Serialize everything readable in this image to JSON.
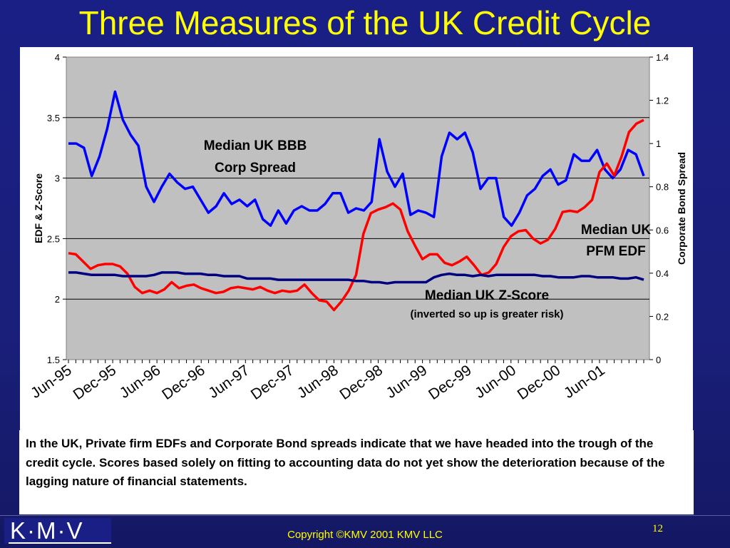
{
  "slide": {
    "title": "Three Measures of the UK Credit Cycle",
    "body_text": "In the UK, Private firm EDFs and Corporate Bond spreads indicate that we have headed into the trough of the credit cycle.  Scores based solely on fitting to accounting data do not yet show the deterioration because of the lagging nature of financial statements.",
    "logo": "K·M·V",
    "copyright": "Copyright ©KMV 2001 KMV LLC",
    "page_number": "12"
  },
  "colors": {
    "background": "#1a1f86",
    "title": "#ffff00",
    "plot_area": "#c0c0c0",
    "spread_series": "#0000ff",
    "edf_series": "#ff0000",
    "zscore_series": "#000080"
  },
  "chart_data": {
    "type": "line",
    "title": "",
    "ylabel": "EDF & Z-Score",
    "y2label": "Corporate Bond Spread",
    "ylim": [
      1.5,
      4
    ],
    "y2lim": [
      0,
      1.4
    ],
    "yticks": [
      "1.5",
      "2",
      "2.5",
      "3",
      "3.5",
      "4"
    ],
    "y2ticks": [
      "0",
      "0.2",
      "0.4",
      "0.6",
      "0.8",
      "1",
      "1.2",
      "1.4"
    ],
    "xlabels": [
      "Jun-95",
      "Dec-95",
      "Jun-96",
      "Dec-96",
      "Jun-97",
      "Dec-97",
      "Jun-98",
      "Dec-98",
      "Jun-99",
      "Dec-99",
      "Jun-00",
      "Dec-00",
      "Jun-01"
    ],
    "grid": true,
    "annotations": [
      {
        "text": "Median UK  BBB",
        "series": "spread"
      },
      {
        "text": "Corp Spread",
        "series": "spread"
      },
      {
        "text": "Median UK",
        "series": "edf"
      },
      {
        "text": "PFM EDF",
        "series": "edf"
      },
      {
        "text": "Median UK Z-Score",
        "series": "zscore"
      },
      {
        "text": "(inverted so up is greater risk)",
        "series": "zscore"
      }
    ],
    "series": [
      {
        "key": "spread",
        "axis": "right",
        "values": [
          1.0,
          1.0,
          0.98,
          0.85,
          0.94,
          1.07,
          1.24,
          1.11,
          1.04,
          0.99,
          0.8,
          0.73,
          0.8,
          0.86,
          0.82,
          0.79,
          0.8,
          0.74,
          0.68,
          0.71,
          0.77,
          0.72,
          0.74,
          0.71,
          0.74,
          0.65,
          0.62,
          0.69,
          0.63,
          0.69,
          0.71,
          0.69,
          0.69,
          0.72,
          0.77,
          0.77,
          0.68,
          0.7,
          0.69,
          0.73,
          1.02,
          0.87,
          0.8,
          0.86,
          0.67,
          0.69,
          0.68,
          0.66,
          0.94,
          1.05,
          1.02,
          1.05,
          0.96,
          0.79,
          0.84,
          0.84,
          0.66,
          0.62,
          0.68,
          0.76,
          0.79,
          0.85,
          0.88,
          0.81,
          0.83,
          0.95,
          0.92,
          0.92,
          0.97,
          0.88,
          0.84,
          0.88,
          0.97,
          0.95,
          0.85
        ]
      },
      {
        "key": "edf",
        "axis": "left",
        "values": [
          2.38,
          2.37,
          2.31,
          2.25,
          2.28,
          2.29,
          2.29,
          2.27,
          2.21,
          2.1,
          2.05,
          2.07,
          2.05,
          2.08,
          2.14,
          2.09,
          2.11,
          2.12,
          2.09,
          2.07,
          2.05,
          2.06,
          2.09,
          2.1,
          2.09,
          2.08,
          2.1,
          2.07,
          2.05,
          2.07,
          2.06,
          2.07,
          2.12,
          2.05,
          1.99,
          1.98,
          1.91,
          1.98,
          2.07,
          2.2,
          2.54,
          2.71,
          2.74,
          2.76,
          2.79,
          2.74,
          2.56,
          2.44,
          2.33,
          2.37,
          2.37,
          2.3,
          2.28,
          2.31,
          2.35,
          2.28,
          2.2,
          2.22,
          2.29,
          2.43,
          2.52,
          2.56,
          2.57,
          2.5,
          2.46,
          2.49,
          2.58,
          2.72,
          2.73,
          2.72,
          2.76,
          2.82,
          3.05,
          3.12,
          3.02,
          3.18,
          3.38,
          3.45,
          3.48
        ]
      },
      {
        "key": "zscore",
        "axis": "left",
        "values": [
          2.22,
          2.22,
          2.21,
          2.2,
          2.2,
          2.2,
          2.2,
          2.19,
          2.19,
          2.19,
          2.19,
          2.2,
          2.22,
          2.22,
          2.22,
          2.21,
          2.21,
          2.21,
          2.2,
          2.2,
          2.19,
          2.19,
          2.19,
          2.17,
          2.17,
          2.17,
          2.17,
          2.16,
          2.16,
          2.16,
          2.16,
          2.16,
          2.16,
          2.16,
          2.16,
          2.16,
          2.16,
          2.15,
          2.15,
          2.14,
          2.14,
          2.13,
          2.14,
          2.14,
          2.14,
          2.14,
          2.14,
          2.18,
          2.2,
          2.21,
          2.2,
          2.2,
          2.19,
          2.2,
          2.19,
          2.2,
          2.2,
          2.2,
          2.2,
          2.2,
          2.2,
          2.19,
          2.19,
          2.18,
          2.18,
          2.18,
          2.19,
          2.19,
          2.18,
          2.18,
          2.18,
          2.17,
          2.17,
          2.18,
          2.16
        ]
      }
    ]
  }
}
